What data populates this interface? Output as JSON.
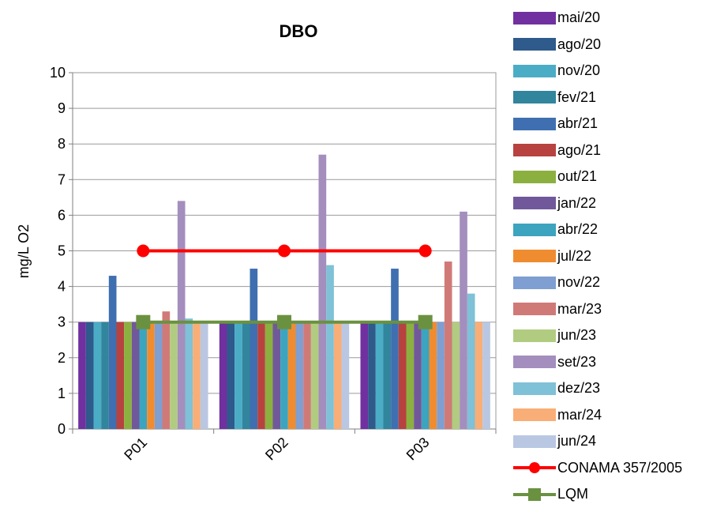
{
  "chart_data": {
    "type": "bar",
    "title": "DBO",
    "xlabel": "",
    "ylabel": "mg/L O2",
    "ylim": [
      0,
      10
    ],
    "yticks": [
      0,
      1,
      2,
      3,
      4,
      5,
      6,
      7,
      8,
      9,
      10
    ],
    "categories": [
      "P01",
      "P02",
      "P03"
    ],
    "grid": true,
    "legend_position": "right",
    "series": [
      {
        "name": "mai/20",
        "color": "#7030A0",
        "values": [
          3,
          3,
          3
        ]
      },
      {
        "name": "ago/20",
        "color": "#2E5A8C",
        "values": [
          3,
          3,
          3
        ]
      },
      {
        "name": "nov/20",
        "color": "#4BACC6",
        "values": [
          3,
          3,
          3
        ]
      },
      {
        "name": "fev/21",
        "color": "#31859C",
        "values": [
          3,
          3,
          3
        ]
      },
      {
        "name": "abr/21",
        "color": "#3F6FB0",
        "values": [
          4.3,
          4.5,
          4.5
        ]
      },
      {
        "name": "ago/21",
        "color": "#B8423F",
        "values": [
          3,
          3,
          3
        ]
      },
      {
        "name": "out/21",
        "color": "#8BB040",
        "values": [
          3,
          3,
          3
        ]
      },
      {
        "name": "jan/22",
        "color": "#71589A",
        "values": [
          3,
          3,
          3
        ]
      },
      {
        "name": "abr/22",
        "color": "#3CA4BE",
        "values": [
          3,
          3,
          3
        ]
      },
      {
        "name": "jul/22",
        "color": "#F08C30",
        "values": [
          3,
          3,
          3
        ]
      },
      {
        "name": "nov/22",
        "color": "#7F9ED1",
        "values": [
          3,
          3,
          3
        ]
      },
      {
        "name": "mar/23",
        "color": "#D07A78",
        "values": [
          3.3,
          3,
          4.7
        ]
      },
      {
        "name": "jun/23",
        "color": "#B1CC80",
        "values": [
          3,
          3,
          3
        ]
      },
      {
        "name": "set/23",
        "color": "#A48EBE",
        "values": [
          6.4,
          7.7,
          6.1
        ]
      },
      {
        "name": "dez/23",
        "color": "#7FC1D6",
        "values": [
          3.1,
          4.6,
          3.8
        ]
      },
      {
        "name": "mar/24",
        "color": "#F8AE76",
        "values": [
          3,
          3,
          3
        ]
      },
      {
        "name": "jun/24",
        "color": "#B9C7E2",
        "values": [
          3,
          3,
          3
        ]
      }
    ],
    "lines": [
      {
        "name": "CONAMA 357/2005",
        "color": "#FF0000",
        "marker": "circle",
        "values": [
          5,
          5,
          5
        ]
      },
      {
        "name": "LQM",
        "color": "#6A9140",
        "marker": "square",
        "values": [
          3,
          3,
          3
        ]
      }
    ]
  }
}
